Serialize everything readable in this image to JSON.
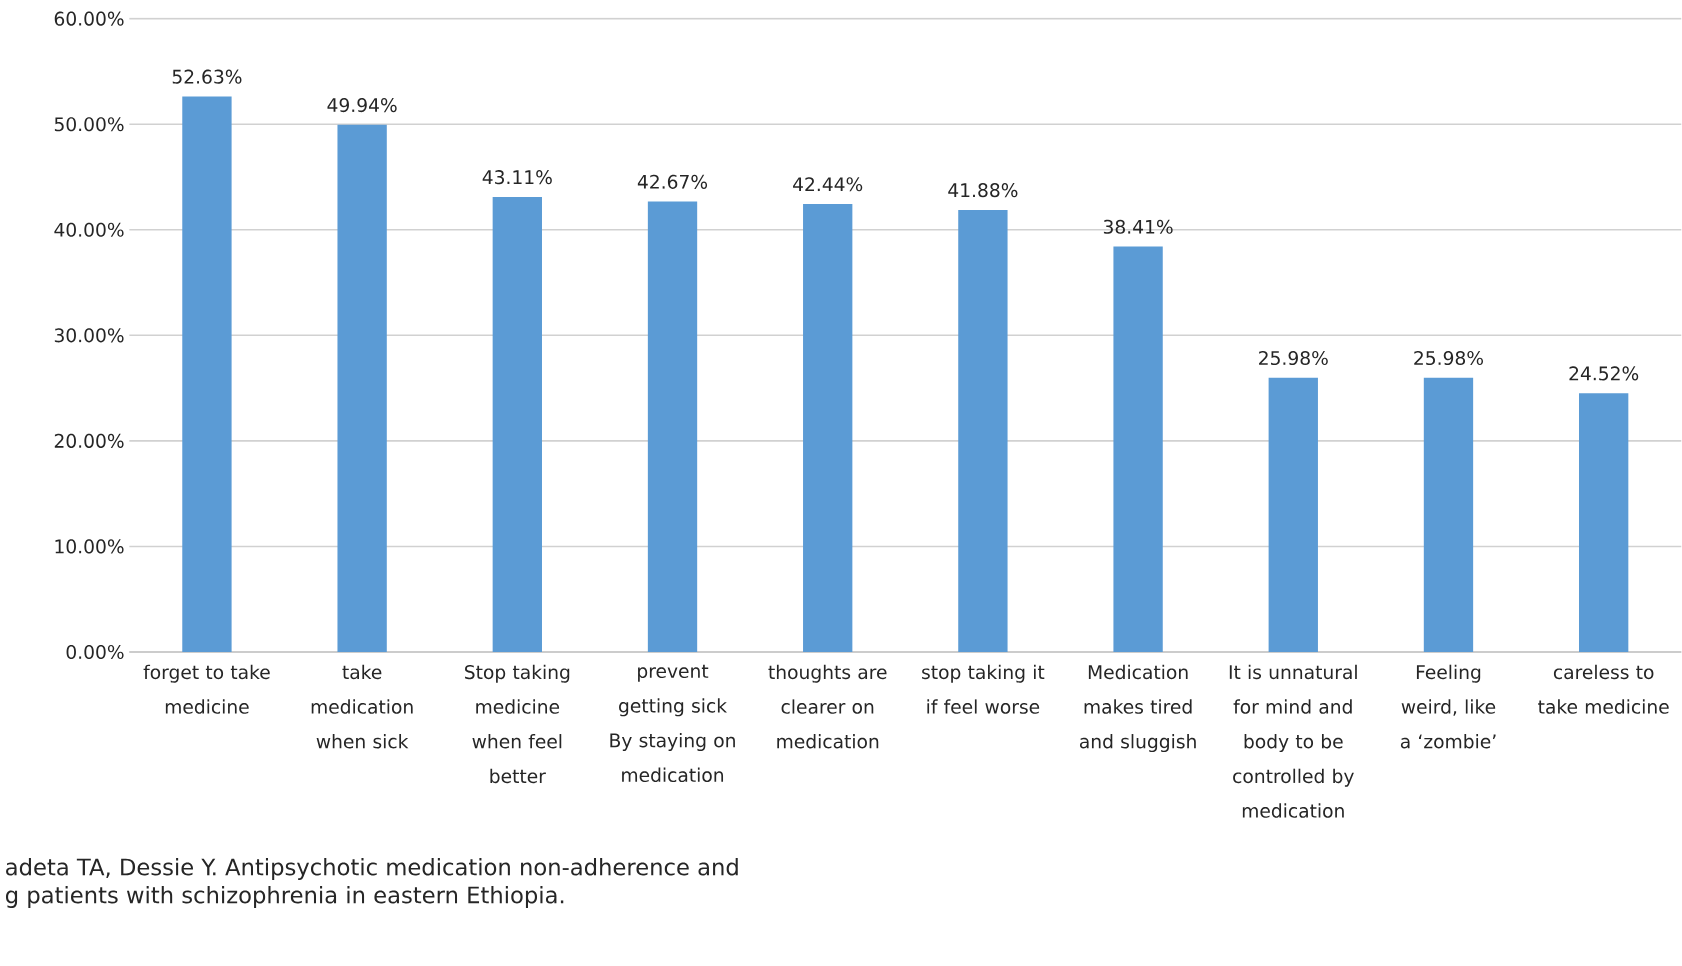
{
  "chart_data": {
    "type": "bar",
    "categories": [
      "forget to take medicine",
      "take medication when sick",
      "Stop  taking medicine when feel better",
      "prevent getting sick By staying on medication",
      "thoughts are clearer on medication",
      "stop taking it if  feel worse",
      "Medication makes tired and sluggish",
      "It is unnatural for mind and body to be controlled by medication",
      "Feeling weird, like a ‘zombie’",
      "careless  to take medicine"
    ],
    "values": [
      52.63,
      49.94,
      43.11,
      42.67,
      42.44,
      41.88,
      38.41,
      25.98,
      25.98,
      24.52
    ],
    "value_labels": [
      "52.63%",
      "49.94%",
      "43.11%",
      "42.67%",
      "42.44%",
      "41.88%",
      "38.41%",
      "25.98%",
      "25.98%",
      "24.52%"
    ],
    "color": "#5b9bd5",
    "ylim": [
      0,
      60
    ],
    "yticks": [
      {
        "value": 0,
        "label": "0.00%"
      },
      {
        "value": 10,
        "label": "10.00%"
      },
      {
        "value": 20,
        "label": "20.00%"
      },
      {
        "value": 30,
        "label": "30.00%"
      },
      {
        "value": 40,
        "label": "40.00%"
      },
      {
        "value": 50,
        "label": "50.00%"
      },
      {
        "value": 60,
        "label": "60.00%"
      }
    ],
    "grid": "y",
    "annotations": [
      "adeta TA, Dessie Y. Antipsychotic medication non-adherence and",
      "g patients with schizophrenia in eastern Ethiopia."
    ]
  }
}
